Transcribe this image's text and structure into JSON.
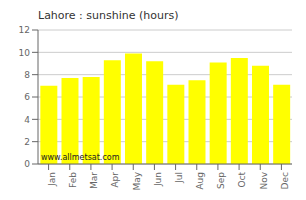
{
  "chart_data": {
    "type": "bar",
    "title": "Lahore : sunshine (hours)",
    "categories": [
      "Jan",
      "Feb",
      "Mar",
      "Apr",
      "May",
      "Jun",
      "Jul",
      "Aug",
      "Sep",
      "Oct",
      "Nov",
      "Dec"
    ],
    "values": [
      7.0,
      7.7,
      7.8,
      9.3,
      9.9,
      9.2,
      7.1,
      7.5,
      9.1,
      9.5,
      8.8,
      7.1
    ],
    "color": "#FFFF00",
    "ylim": [
      0,
      12
    ],
    "yticks": [
      0,
      2,
      4,
      6,
      8,
      10,
      12
    ],
    "grid": true,
    "annotation": "www.allmetsat.com"
  }
}
